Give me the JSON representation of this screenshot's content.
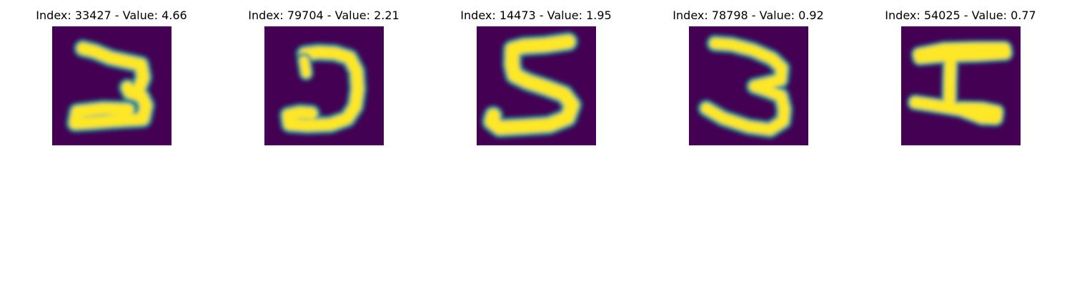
{
  "colors": {
    "background": "#440154",
    "mid": "#21918c",
    "stroke": "#fde725"
  },
  "panels": [
    {
      "title": "Index: 33427 - Value: 4.66",
      "image": "handwritten-digit-3-reversed-e-shape"
    },
    {
      "title": "Index: 79704 - Value: 2.21",
      "image": "handwritten-digit-j-hook-shape"
    },
    {
      "title": "Index: 14473 - Value: 1.95",
      "image": "handwritten-digit-5"
    },
    {
      "title": "Index: 78798 - Value: 0.92",
      "image": "handwritten-digit-3"
    },
    {
      "title": "Index: 54025 - Value: 0.77",
      "image": "handwritten-letter-i-serif"
    }
  ]
}
